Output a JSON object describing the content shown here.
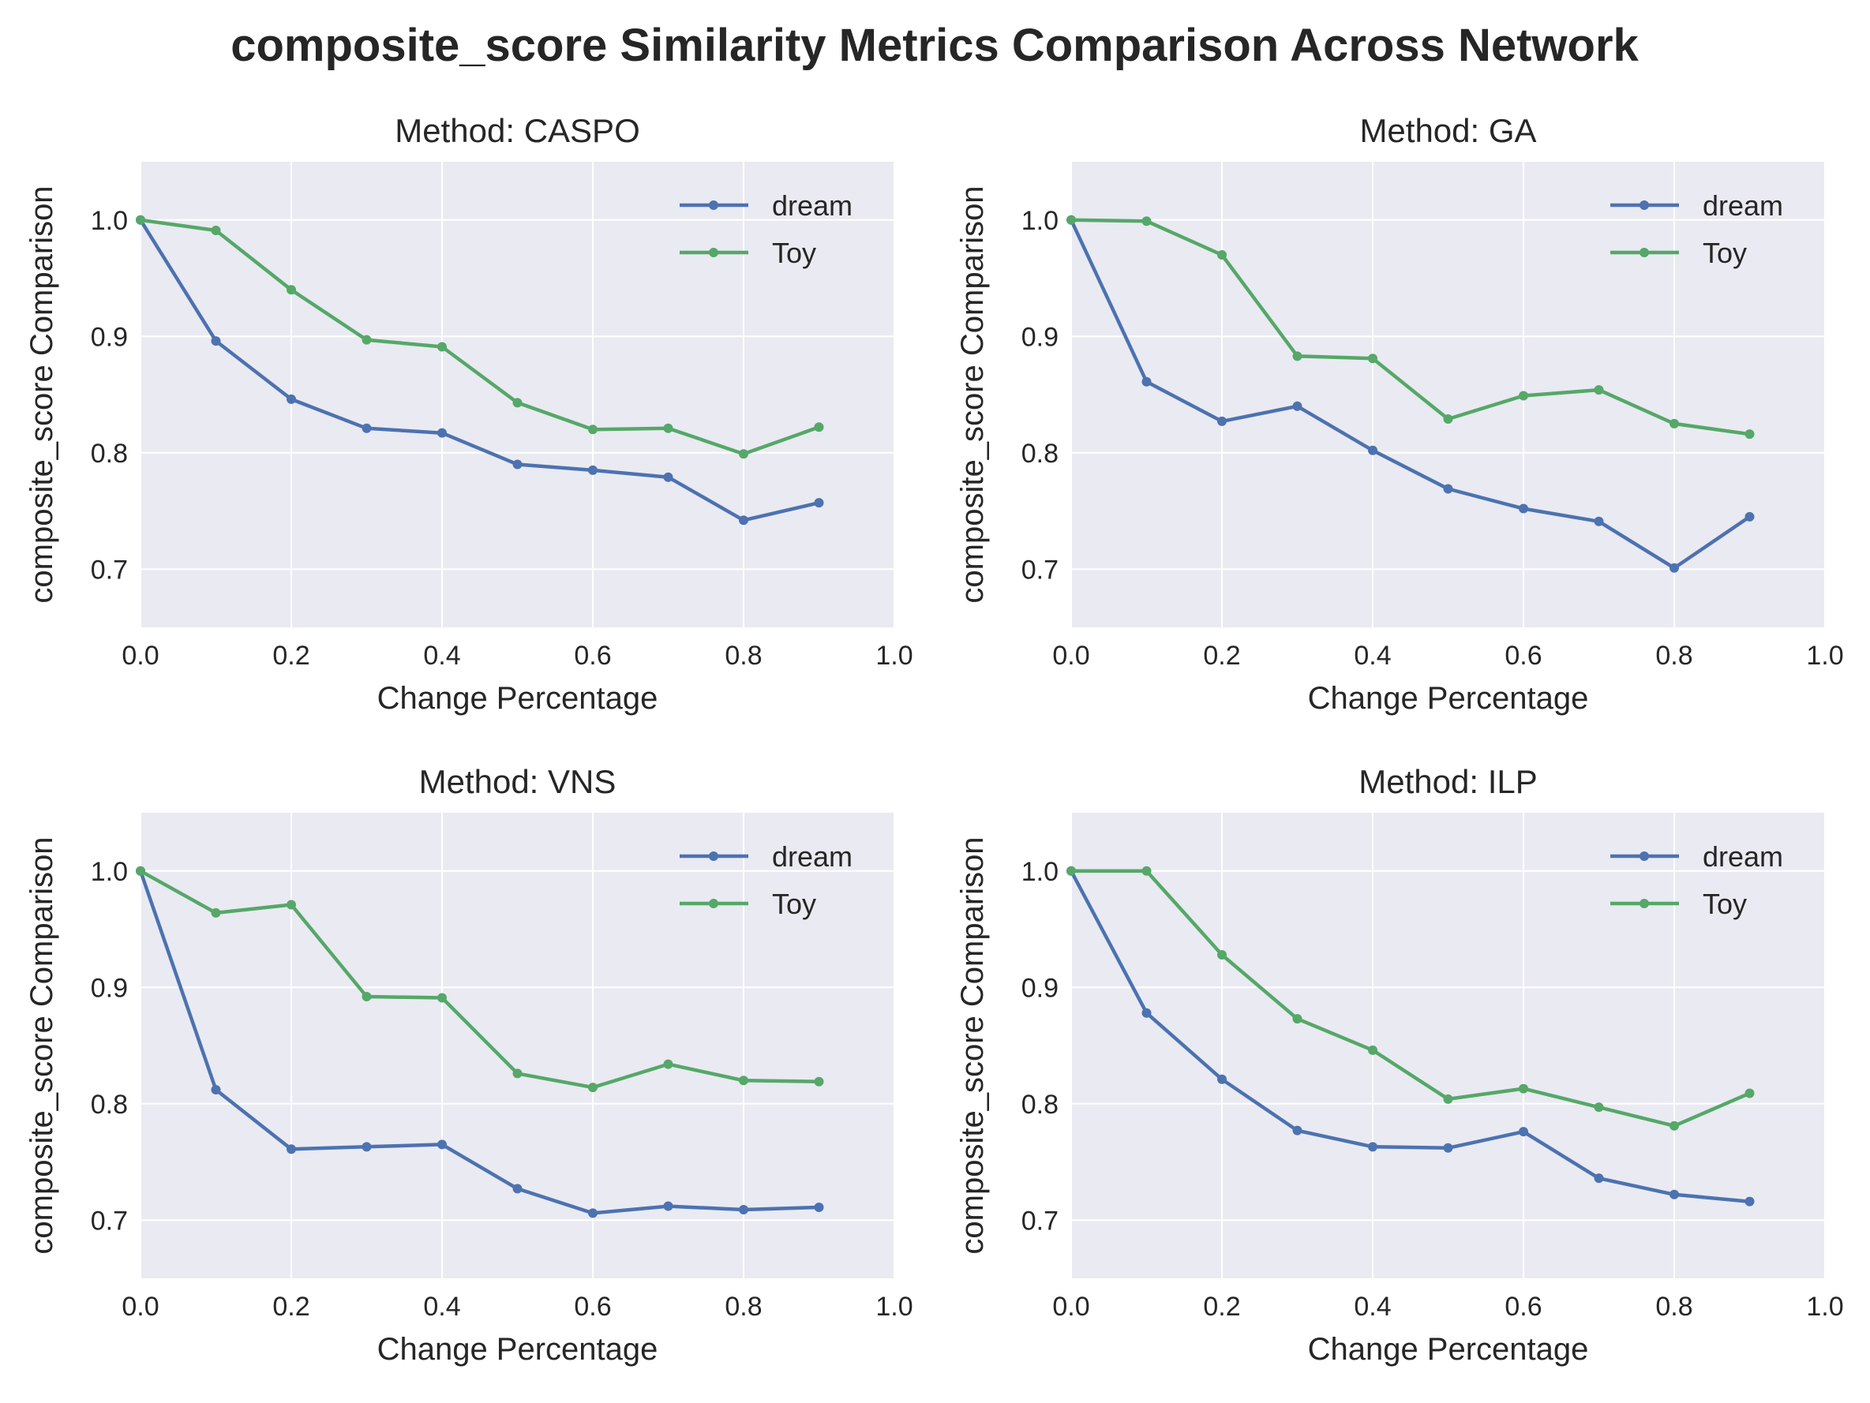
{
  "title": "composite_score Similarity Metrics Comparison Across Network",
  "colors": {
    "dream": "#4c72b0",
    "Toy": "#55a868",
    "background": "#eaeaf2"
  },
  "chart_data": [
    {
      "type": "line",
      "title": "Method: CASPO",
      "xlabel": "Change Percentage",
      "ylabel": "composite_score Comparison",
      "xlim": [
        0.0,
        1.0
      ],
      "ylim": [
        0.65,
        1.05
      ],
      "xticks": [
        "0.0",
        "0.2",
        "0.4",
        "0.6",
        "0.8",
        "1.0"
      ],
      "yticks": [
        "0.7",
        "0.8",
        "0.9",
        "1.0"
      ],
      "legend": "top-right",
      "x": [
        0.0,
        0.1,
        0.2,
        0.3,
        0.4,
        0.5,
        0.6,
        0.7,
        0.8,
        0.9
      ],
      "series": [
        {
          "name": "dream",
          "values": [
            1.0,
            0.896,
            0.846,
            0.821,
            0.817,
            0.79,
            0.785,
            0.779,
            0.742,
            0.757
          ]
        },
        {
          "name": "Toy",
          "values": [
            1.0,
            0.991,
            0.94,
            0.897,
            0.891,
            0.843,
            0.82,
            0.821,
            0.799,
            0.822
          ]
        }
      ]
    },
    {
      "type": "line",
      "title": "Method: GA",
      "xlabel": "Change Percentage",
      "ylabel": "composite_score Comparison",
      "xlim": [
        0.0,
        1.0
      ],
      "ylim": [
        0.65,
        1.05
      ],
      "xticks": [
        "0.0",
        "0.2",
        "0.4",
        "0.6",
        "0.8",
        "1.0"
      ],
      "yticks": [
        "0.7",
        "0.8",
        "0.9",
        "1.0"
      ],
      "legend": "top-right",
      "x": [
        0.0,
        0.1,
        0.2,
        0.3,
        0.4,
        0.5,
        0.6,
        0.7,
        0.8,
        0.9
      ],
      "series": [
        {
          "name": "dream",
          "values": [
            1.0,
            0.861,
            0.827,
            0.84,
            0.802,
            0.769,
            0.752,
            0.741,
            0.701,
            0.745
          ]
        },
        {
          "name": "Toy",
          "values": [
            1.0,
            0.999,
            0.97,
            0.883,
            0.881,
            0.829,
            0.849,
            0.854,
            0.825,
            0.816
          ]
        }
      ]
    },
    {
      "type": "line",
      "title": "Method: VNS",
      "xlabel": "Change Percentage",
      "ylabel": "composite_score Comparison",
      "xlim": [
        0.0,
        1.0
      ],
      "ylim": [
        0.65,
        1.05
      ],
      "xticks": [
        "0.0",
        "0.2",
        "0.4",
        "0.6",
        "0.8",
        "1.0"
      ],
      "yticks": [
        "0.7",
        "0.8",
        "0.9",
        "1.0"
      ],
      "legend": "top-right",
      "x": [
        0.0,
        0.1,
        0.2,
        0.3,
        0.4,
        0.5,
        0.6,
        0.7,
        0.8,
        0.9
      ],
      "series": [
        {
          "name": "dream",
          "values": [
            1.0,
            0.812,
            0.761,
            0.763,
            0.765,
            0.727,
            0.706,
            0.712,
            0.709,
            0.711
          ]
        },
        {
          "name": "Toy",
          "values": [
            1.0,
            0.964,
            0.971,
            0.892,
            0.891,
            0.826,
            0.814,
            0.834,
            0.82,
            0.819
          ]
        }
      ]
    },
    {
      "type": "line",
      "title": "Method: ILP",
      "xlabel": "Change Percentage",
      "ylabel": "composite_score Comparison",
      "xlim": [
        0.0,
        1.0
      ],
      "ylim": [
        0.65,
        1.05
      ],
      "xticks": [
        "0.0",
        "0.2",
        "0.4",
        "0.6",
        "0.8",
        "1.0"
      ],
      "yticks": [
        "0.7",
        "0.8",
        "0.9",
        "1.0"
      ],
      "legend": "top-right",
      "x": [
        0.0,
        0.1,
        0.2,
        0.3,
        0.4,
        0.5,
        0.6,
        0.7,
        0.8,
        0.9
      ],
      "series": [
        {
          "name": "dream",
          "values": [
            1.0,
            0.878,
            0.821,
            0.777,
            0.763,
            0.762,
            0.776,
            0.736,
            0.722,
            0.716
          ]
        },
        {
          "name": "Toy",
          "values": [
            1.0,
            1.0,
            0.928,
            0.873,
            0.846,
            0.804,
            0.813,
            0.797,
            0.781,
            0.809
          ]
        }
      ]
    }
  ]
}
